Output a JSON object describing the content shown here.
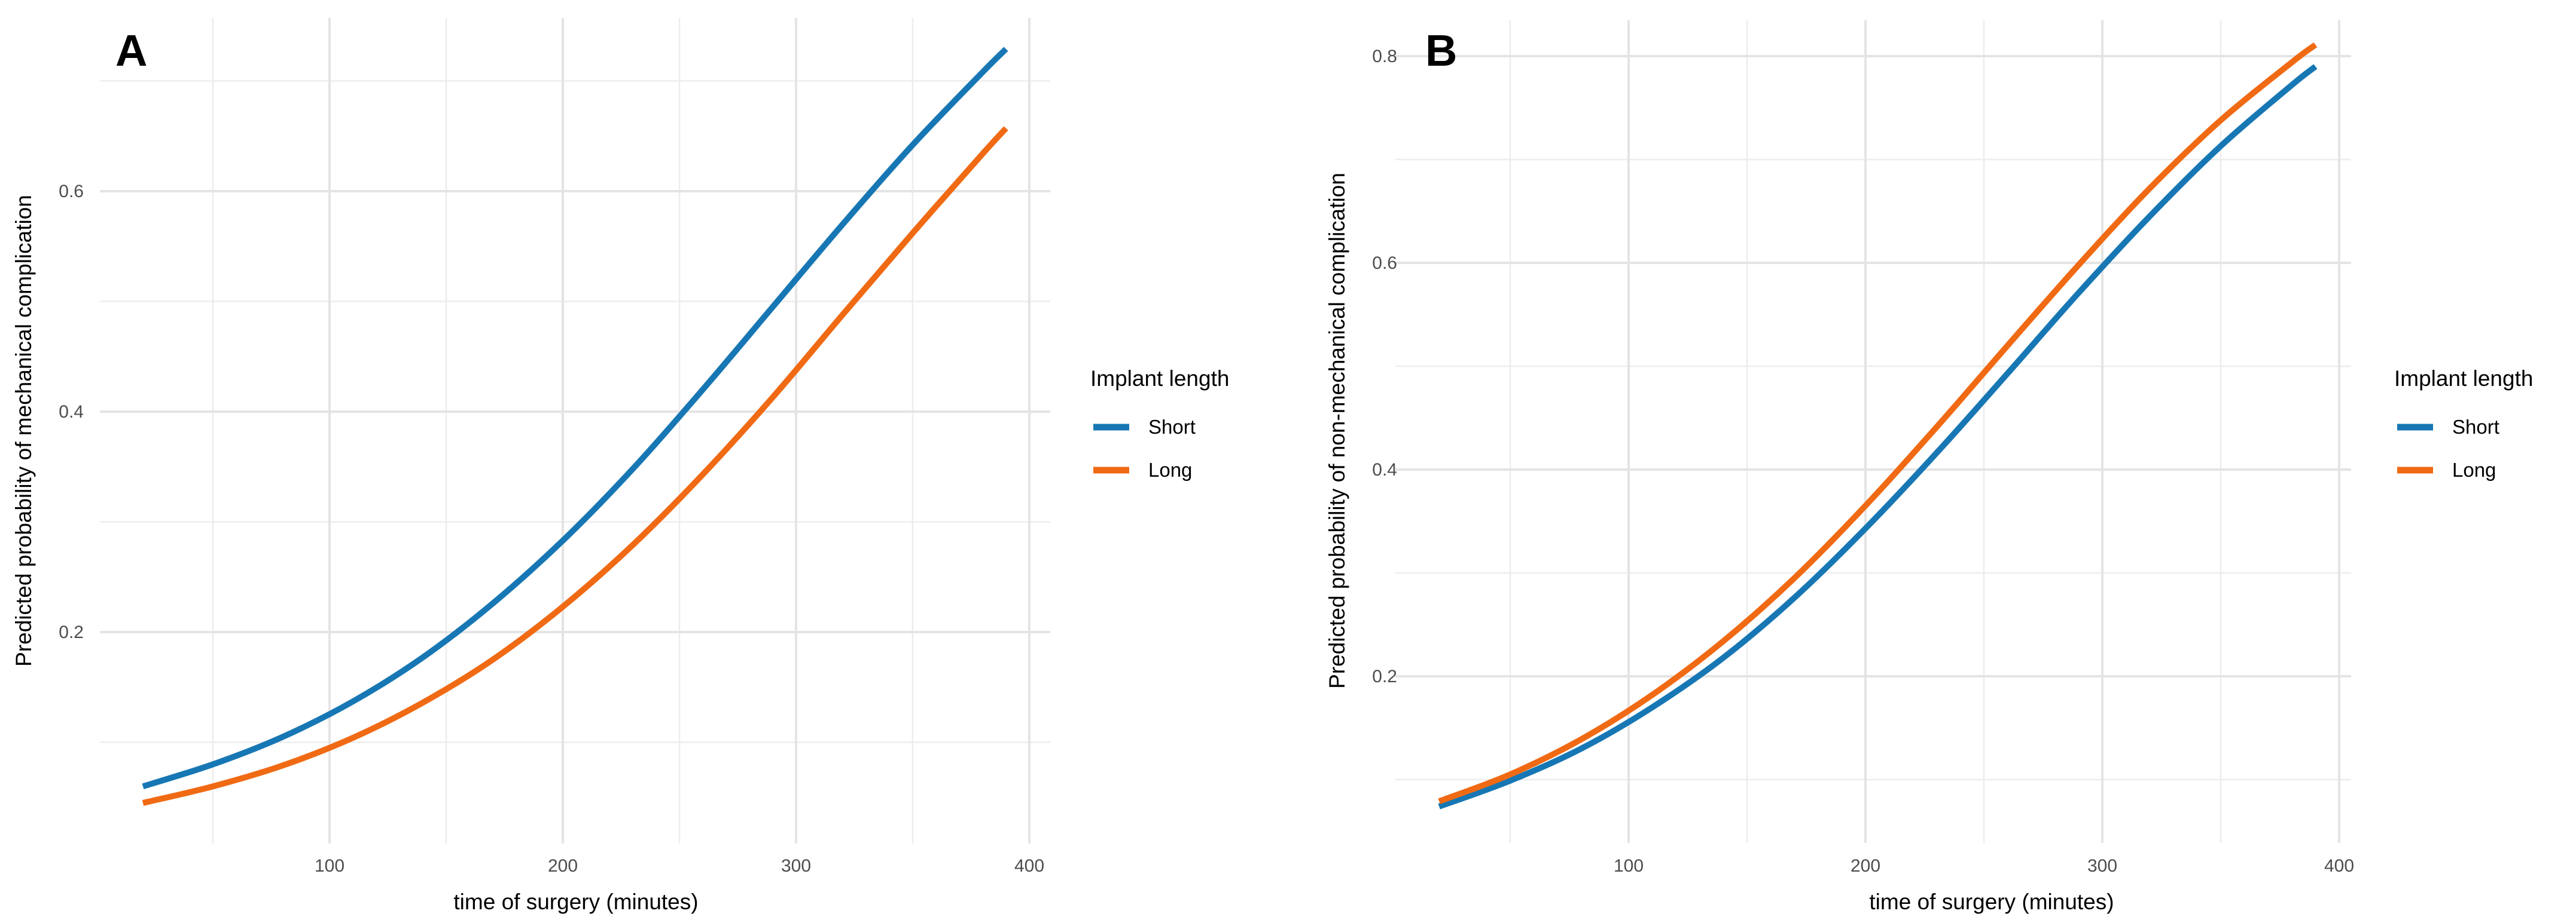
{
  "figure": {
    "background": "#ffffff",
    "panels": [
      {
        "label": "A",
        "x_axis": {
          "title": "time of surgery (minutes)",
          "tick_labels": [
            "100",
            "200",
            "300",
            "400"
          ],
          "tick_values": [
            100,
            200,
            300,
            400
          ],
          "minor_tick_values": [
            50,
            150,
            250,
            350
          ]
        },
        "y_axis": {
          "title": "Predicted probability of mechanical complication",
          "tick_labels": [
            "0.2",
            "0.4",
            "0.6"
          ],
          "tick_values": [
            0.2,
            0.4,
            0.6
          ],
          "minor_tick_values": [
            0.1,
            0.3,
            0.5,
            0.7
          ]
        }
      },
      {
        "label": "B",
        "x_axis": {
          "title": "time of surgery (minutes)",
          "tick_labels": [
            "100",
            "200",
            "300",
            "400"
          ],
          "tick_values": [
            100,
            200,
            300,
            400
          ],
          "minor_tick_values": [
            50,
            150,
            250,
            350
          ]
        },
        "y_axis": {
          "title": "Predicted probability of non-mechanical complication",
          "tick_labels": [
            "0.2",
            "0.4",
            "0.6",
            "0.8"
          ],
          "tick_values": [
            0.2,
            0.4,
            0.6,
            0.8
          ],
          "minor_tick_values": [
            0.1,
            0.3,
            0.5,
            0.7
          ]
        }
      }
    ],
    "legend": {
      "title": "Implant length",
      "entries": [
        {
          "label": "Short",
          "color": "#1777b4"
        },
        {
          "label": "Long",
          "color": "#f06a14"
        }
      ]
    },
    "colors": {
      "short_line": "#1777b4",
      "long_line": "#f06a14",
      "grid_major": "#e4e4e4",
      "grid_minor": "#ededed",
      "tick_text": "#4d4d4d",
      "title_text": "#000000"
    }
  },
  "chart_data": [
    {
      "type": "line",
      "panel": "A",
      "title": "A",
      "xlabel": "time of surgery (minutes)",
      "ylabel": "Predicted probability of mechanical complication",
      "x": [
        20,
        50,
        80,
        110,
        140,
        170,
        200,
        230,
        260,
        290,
        320,
        350,
        380,
        390
      ],
      "series": [
        {
          "name": "Short",
          "color": "#1777b4",
          "values": [
            0.06,
            0.08,
            0.105,
            0.137,
            0.177,
            0.226,
            0.283,
            0.348,
            0.42,
            0.495,
            0.57,
            0.642,
            0.708,
            0.729
          ]
        },
        {
          "name": "Long",
          "color": "#f06a14",
          "values": [
            0.045,
            0.06,
            0.079,
            0.104,
            0.136,
            0.175,
            0.223,
            0.279,
            0.343,
            0.413,
            0.488,
            0.562,
            0.634,
            0.657
          ]
        }
      ],
      "xlim": [
        1.5,
        409
      ],
      "ylim": [
        0.008,
        0.757
      ],
      "x_ticks": [
        100,
        200,
        300,
        400
      ],
      "y_ticks": [
        0.2,
        0.4,
        0.6
      ],
      "grid": "major+minor, no axis lines, white background",
      "legend_position": "right"
    },
    {
      "type": "line",
      "panel": "B",
      "title": "B",
      "xlabel": "time of surgery (minutes)",
      "ylabel": "Predicted probability of non-mechanical complication",
      "x": [
        20,
        50,
        80,
        110,
        140,
        170,
        200,
        230,
        260,
        290,
        320,
        350,
        380,
        390
      ],
      "series": [
        {
          "name": "Short",
          "color": "#1777b4",
          "values": [
            0.074,
            0.099,
            0.13,
            0.17,
            0.218,
            0.276,
            0.343,
            0.416,
            0.493,
            0.571,
            0.645,
            0.713,
            0.772,
            0.79
          ]
        },
        {
          "name": "Long",
          "color": "#f06a14",
          "values": [
            0.079,
            0.105,
            0.139,
            0.182,
            0.234,
            0.295,
            0.365,
            0.441,
            0.52,
            0.598,
            0.672,
            0.738,
            0.794,
            0.811
          ]
        }
      ],
      "xlim": [
        1.5,
        405
      ],
      "ylim": [
        0.039,
        0.835
      ],
      "x_ticks": [
        100,
        200,
        300,
        400
      ],
      "y_ticks": [
        0.2,
        0.4,
        0.6,
        0.8
      ],
      "grid": "major+minor, no axis lines, white background",
      "legend_position": "right"
    }
  ]
}
